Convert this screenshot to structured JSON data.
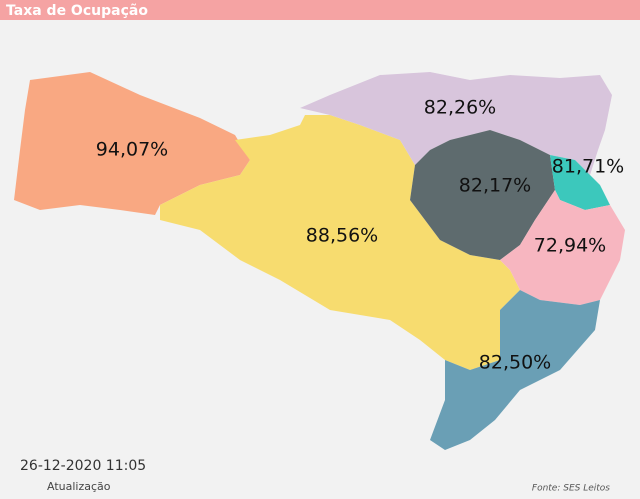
{
  "header": {
    "title": "Taxa de Ocupação"
  },
  "map": {
    "regions": [
      {
        "label": "94,07%",
        "color": "#f9a882"
      },
      {
        "label": "88,56%",
        "color": "#f7dc6f"
      },
      {
        "label": "82,26%",
        "color": "#d8c5dc"
      },
      {
        "label": "82,17%",
        "color": "#5e6b6e"
      },
      {
        "label": "81,71%",
        "color": "#3cc8bc"
      },
      {
        "label": "72,94%",
        "color": "#f7b6c0"
      },
      {
        "label": "82,50%",
        "color": "#6a9fb5"
      }
    ]
  },
  "footer": {
    "updated": "26-12-2020 11:05",
    "updated_caption": "Atualização",
    "source": "Fonte: SES Leitos"
  }
}
